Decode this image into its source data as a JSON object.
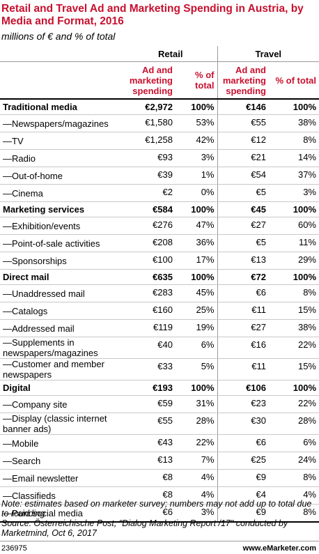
{
  "header": {
    "title": "Retail and Travel Ad and Marketing Spending in Austria, by Media and Format, 2016",
    "subtitle": "millions of € and % of total"
  },
  "table": {
    "groups": [
      "Retail",
      "Travel"
    ],
    "columns": [
      "Ad and marketing spending",
      "% of total",
      "Ad and marketing spending",
      "% of total"
    ],
    "sections": [
      {
        "label": "Traditional media",
        "cells": [
          "€2,972",
          "100%",
          "€146",
          "100%"
        ],
        "rows": [
          [
            "—Newspapers/magazines",
            "€1,580",
            "53%",
            "€55",
            "38%"
          ],
          [
            "—TV",
            "€1,258",
            "42%",
            "€12",
            "8%"
          ],
          [
            "—Radio",
            "€93",
            "3%",
            "€21",
            "14%"
          ],
          [
            "—Out-of-home",
            "€39",
            "1%",
            "€54",
            "37%"
          ],
          [
            "—Cinema",
            "€2",
            "0%",
            "€5",
            "3%"
          ]
        ]
      },
      {
        "label": "Marketing services",
        "cells": [
          "€584",
          "100%",
          "€45",
          "100%"
        ],
        "rows": [
          [
            "—Exhibition/events",
            "€276",
            "47%",
            "€27",
            "60%"
          ],
          [
            "—Point-of-sale activities",
            "€208",
            "36%",
            "€5",
            "11%"
          ],
          [
            "—Sponsorships",
            "€100",
            "17%",
            "€13",
            "29%"
          ]
        ]
      },
      {
        "label": "Direct mail",
        "cells": [
          "€635",
          "100%",
          "€72",
          "100%"
        ],
        "rows": [
          [
            "—Unaddressed mail",
            "€283",
            "45%",
            "€6",
            "8%"
          ],
          [
            "—Catalogs",
            "€160",
            "25%",
            "€11",
            "15%"
          ],
          [
            "—Addressed mail",
            "€119",
            "19%",
            "€27",
            "38%"
          ],
          [
            "—Supplements in newspapers/magazines",
            "€40",
            "6%",
            "€16",
            "22%"
          ],
          [
            "—Customer and member newspapers",
            "€33",
            "5%",
            "€11",
            "15%"
          ]
        ]
      },
      {
        "label": "Digital",
        "cells": [
          "€193",
          "100%",
          "€106",
          "100%"
        ],
        "rows": [
          [
            "—Company site",
            "€59",
            "31%",
            "€23",
            "22%"
          ],
          [
            "—Display (classic internet banner ads)",
            "€55",
            "28%",
            "€30",
            "28%"
          ],
          [
            "—Mobile",
            "€43",
            "22%",
            "€6",
            "6%"
          ],
          [
            "—Search",
            "€13",
            "7%",
            "€25",
            "24%"
          ],
          [
            "—Email newsletter",
            "€8",
            "4%",
            "€9",
            "8%"
          ],
          [
            "—Classifieds",
            "€8",
            "4%",
            "€4",
            "4%"
          ],
          [
            "—Paid social media",
            "€6",
            "3%",
            "€9",
            "8%"
          ]
        ]
      }
    ]
  },
  "footer": {
    "note": "Note: estimates based on marketer survey; numbers may not add up to total due to rounding",
    "source": "Source: Österreichische Post, \"Dialog Marketing Report /17\" conducted by Marketmind, Oct 6, 2017",
    "id": "236975",
    "site": "www.eMarketer.com"
  }
}
